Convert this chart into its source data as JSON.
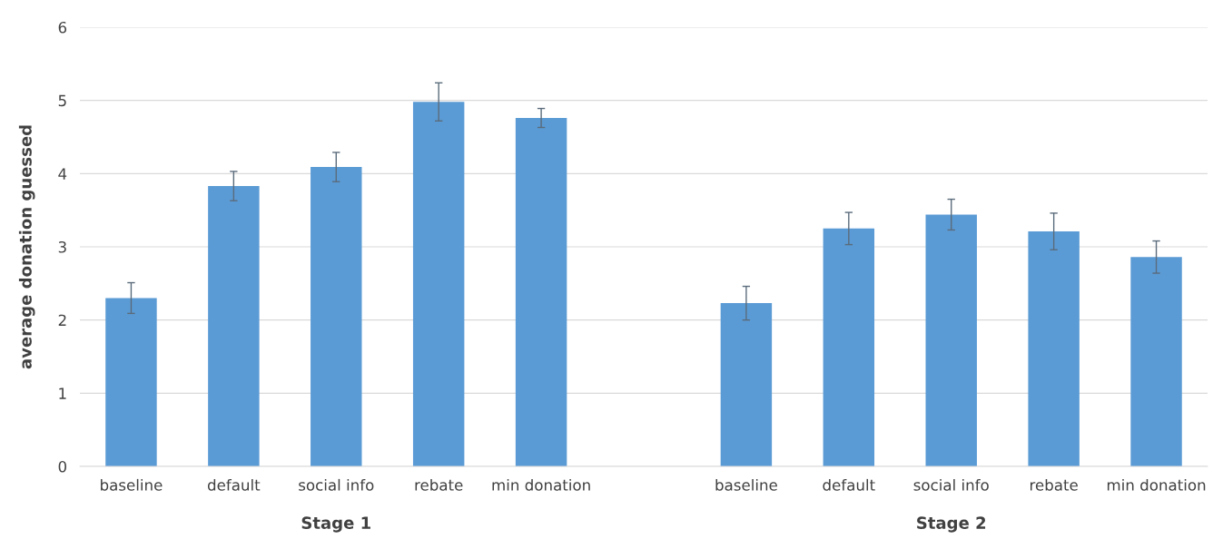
{
  "chart_data": {
    "type": "bar",
    "ylabel": "average donation guessed",
    "categories": [
      "baseline",
      "default",
      "social info",
      "rebate",
      "min donation",
      null,
      "baseline",
      "default",
      "social info",
      "rebate",
      "min donation"
    ],
    "values": [
      2.3,
      3.83,
      4.09,
      4.98,
      4.76,
      null,
      2.23,
      3.25,
      3.44,
      3.21,
      2.86
    ],
    "errors": [
      0.21,
      0.2,
      0.2,
      0.26,
      0.13,
      null,
      0.23,
      0.22,
      0.21,
      0.25,
      0.22
    ],
    "color": "#5b9bd5",
    "ylim": [
      0,
      6
    ],
    "yticks": [
      0,
      1,
      2,
      3,
      4,
      5,
      6
    ],
    "grid": "y",
    "annotations": [
      "Stage 1",
      "Stage 2"
    ]
  }
}
